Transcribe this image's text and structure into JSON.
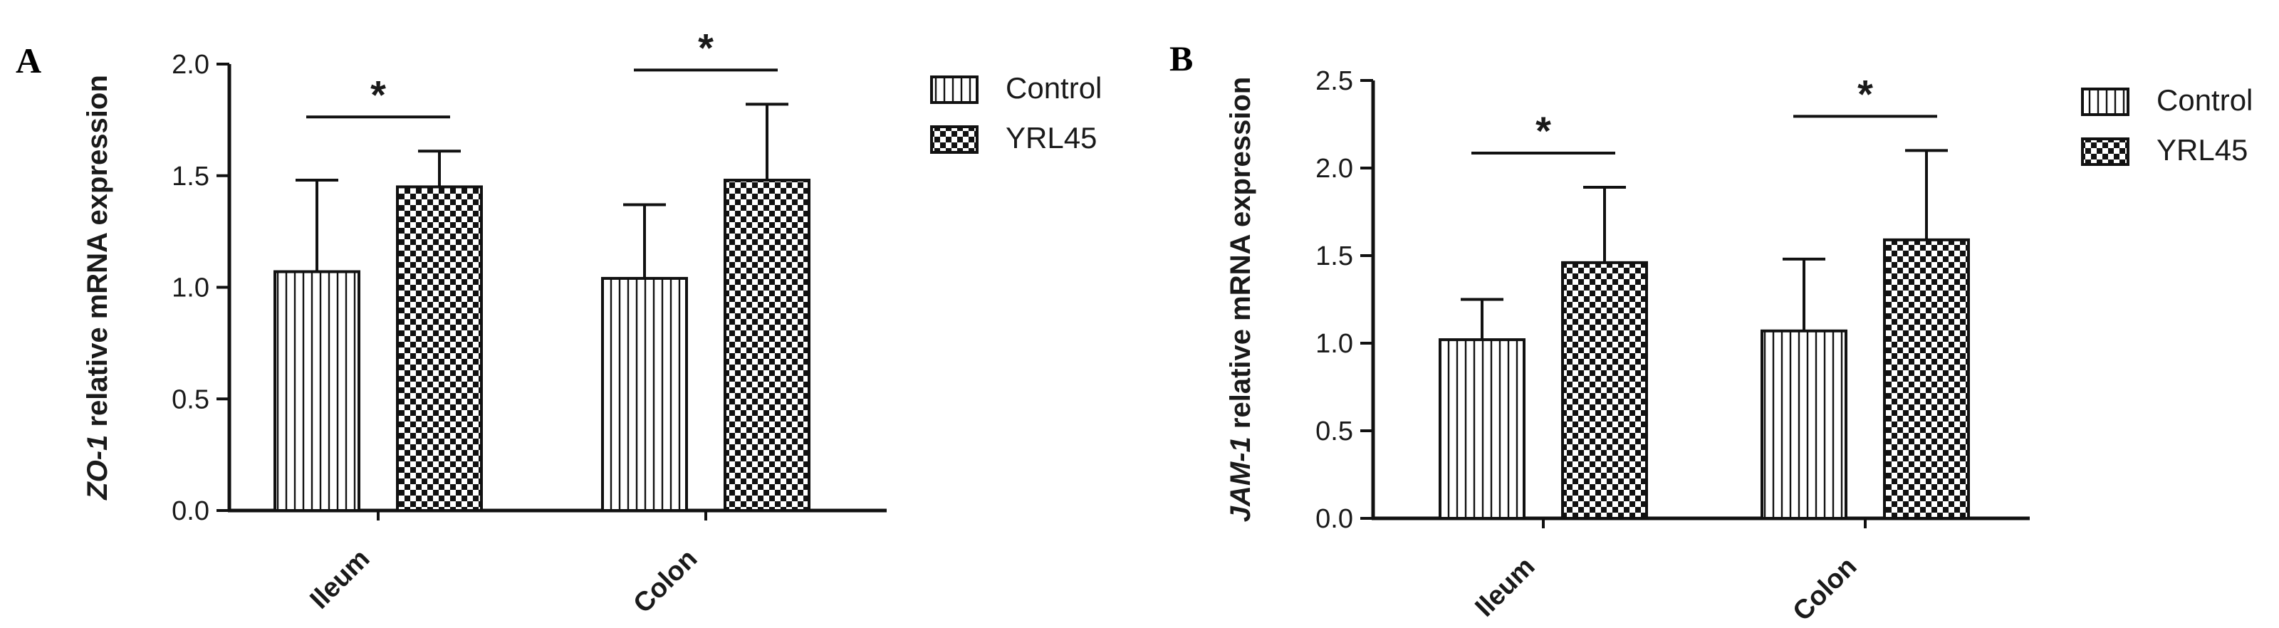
{
  "chart_data": [
    {
      "type": "bar",
      "panel_label": "A",
      "ylabel_italic": "ZO-1",
      "ylabel_rest": " relative mRNA expression",
      "categories": [
        "Ileum",
        "Colon"
      ],
      "series": [
        {
          "name": "Control",
          "values": [
            1.07,
            1.04
          ],
          "errors": [
            0.41,
            0.33
          ],
          "pattern": "vertical-stripes"
        },
        {
          "name": "YRL45",
          "values": [
            1.45,
            1.48
          ],
          "errors": [
            0.16,
            0.34
          ],
          "pattern": "checkerboard"
        }
      ],
      "ylim": [
        0,
        2.0
      ],
      "yticks": [
        "0.0",
        "0.5",
        "1.0",
        "1.5",
        "2.0"
      ],
      "significance": [
        "*",
        "*"
      ],
      "legend_position": "top-right",
      "grid": false
    },
    {
      "type": "bar",
      "panel_label": "B",
      "ylabel_italic": "JAM-1",
      "ylabel_rest": " relative mRNA expression",
      "categories": [
        "Ileum",
        "Colon"
      ],
      "series": [
        {
          "name": "Control",
          "values": [
            1.02,
            1.07
          ],
          "errors": [
            0.23,
            0.41
          ],
          "pattern": "vertical-stripes"
        },
        {
          "name": "YRL45",
          "values": [
            1.46,
            1.59
          ],
          "errors": [
            0.43,
            0.51
          ],
          "pattern": "checkerboard"
        }
      ],
      "ylim": [
        0,
        2.5
      ],
      "yticks": [
        "0.0",
        "0.5",
        "1.0",
        "1.5",
        "2.0",
        "2.5"
      ],
      "significance": [
        "*",
        "*"
      ],
      "legend_position": "top-right",
      "grid": false
    }
  ]
}
